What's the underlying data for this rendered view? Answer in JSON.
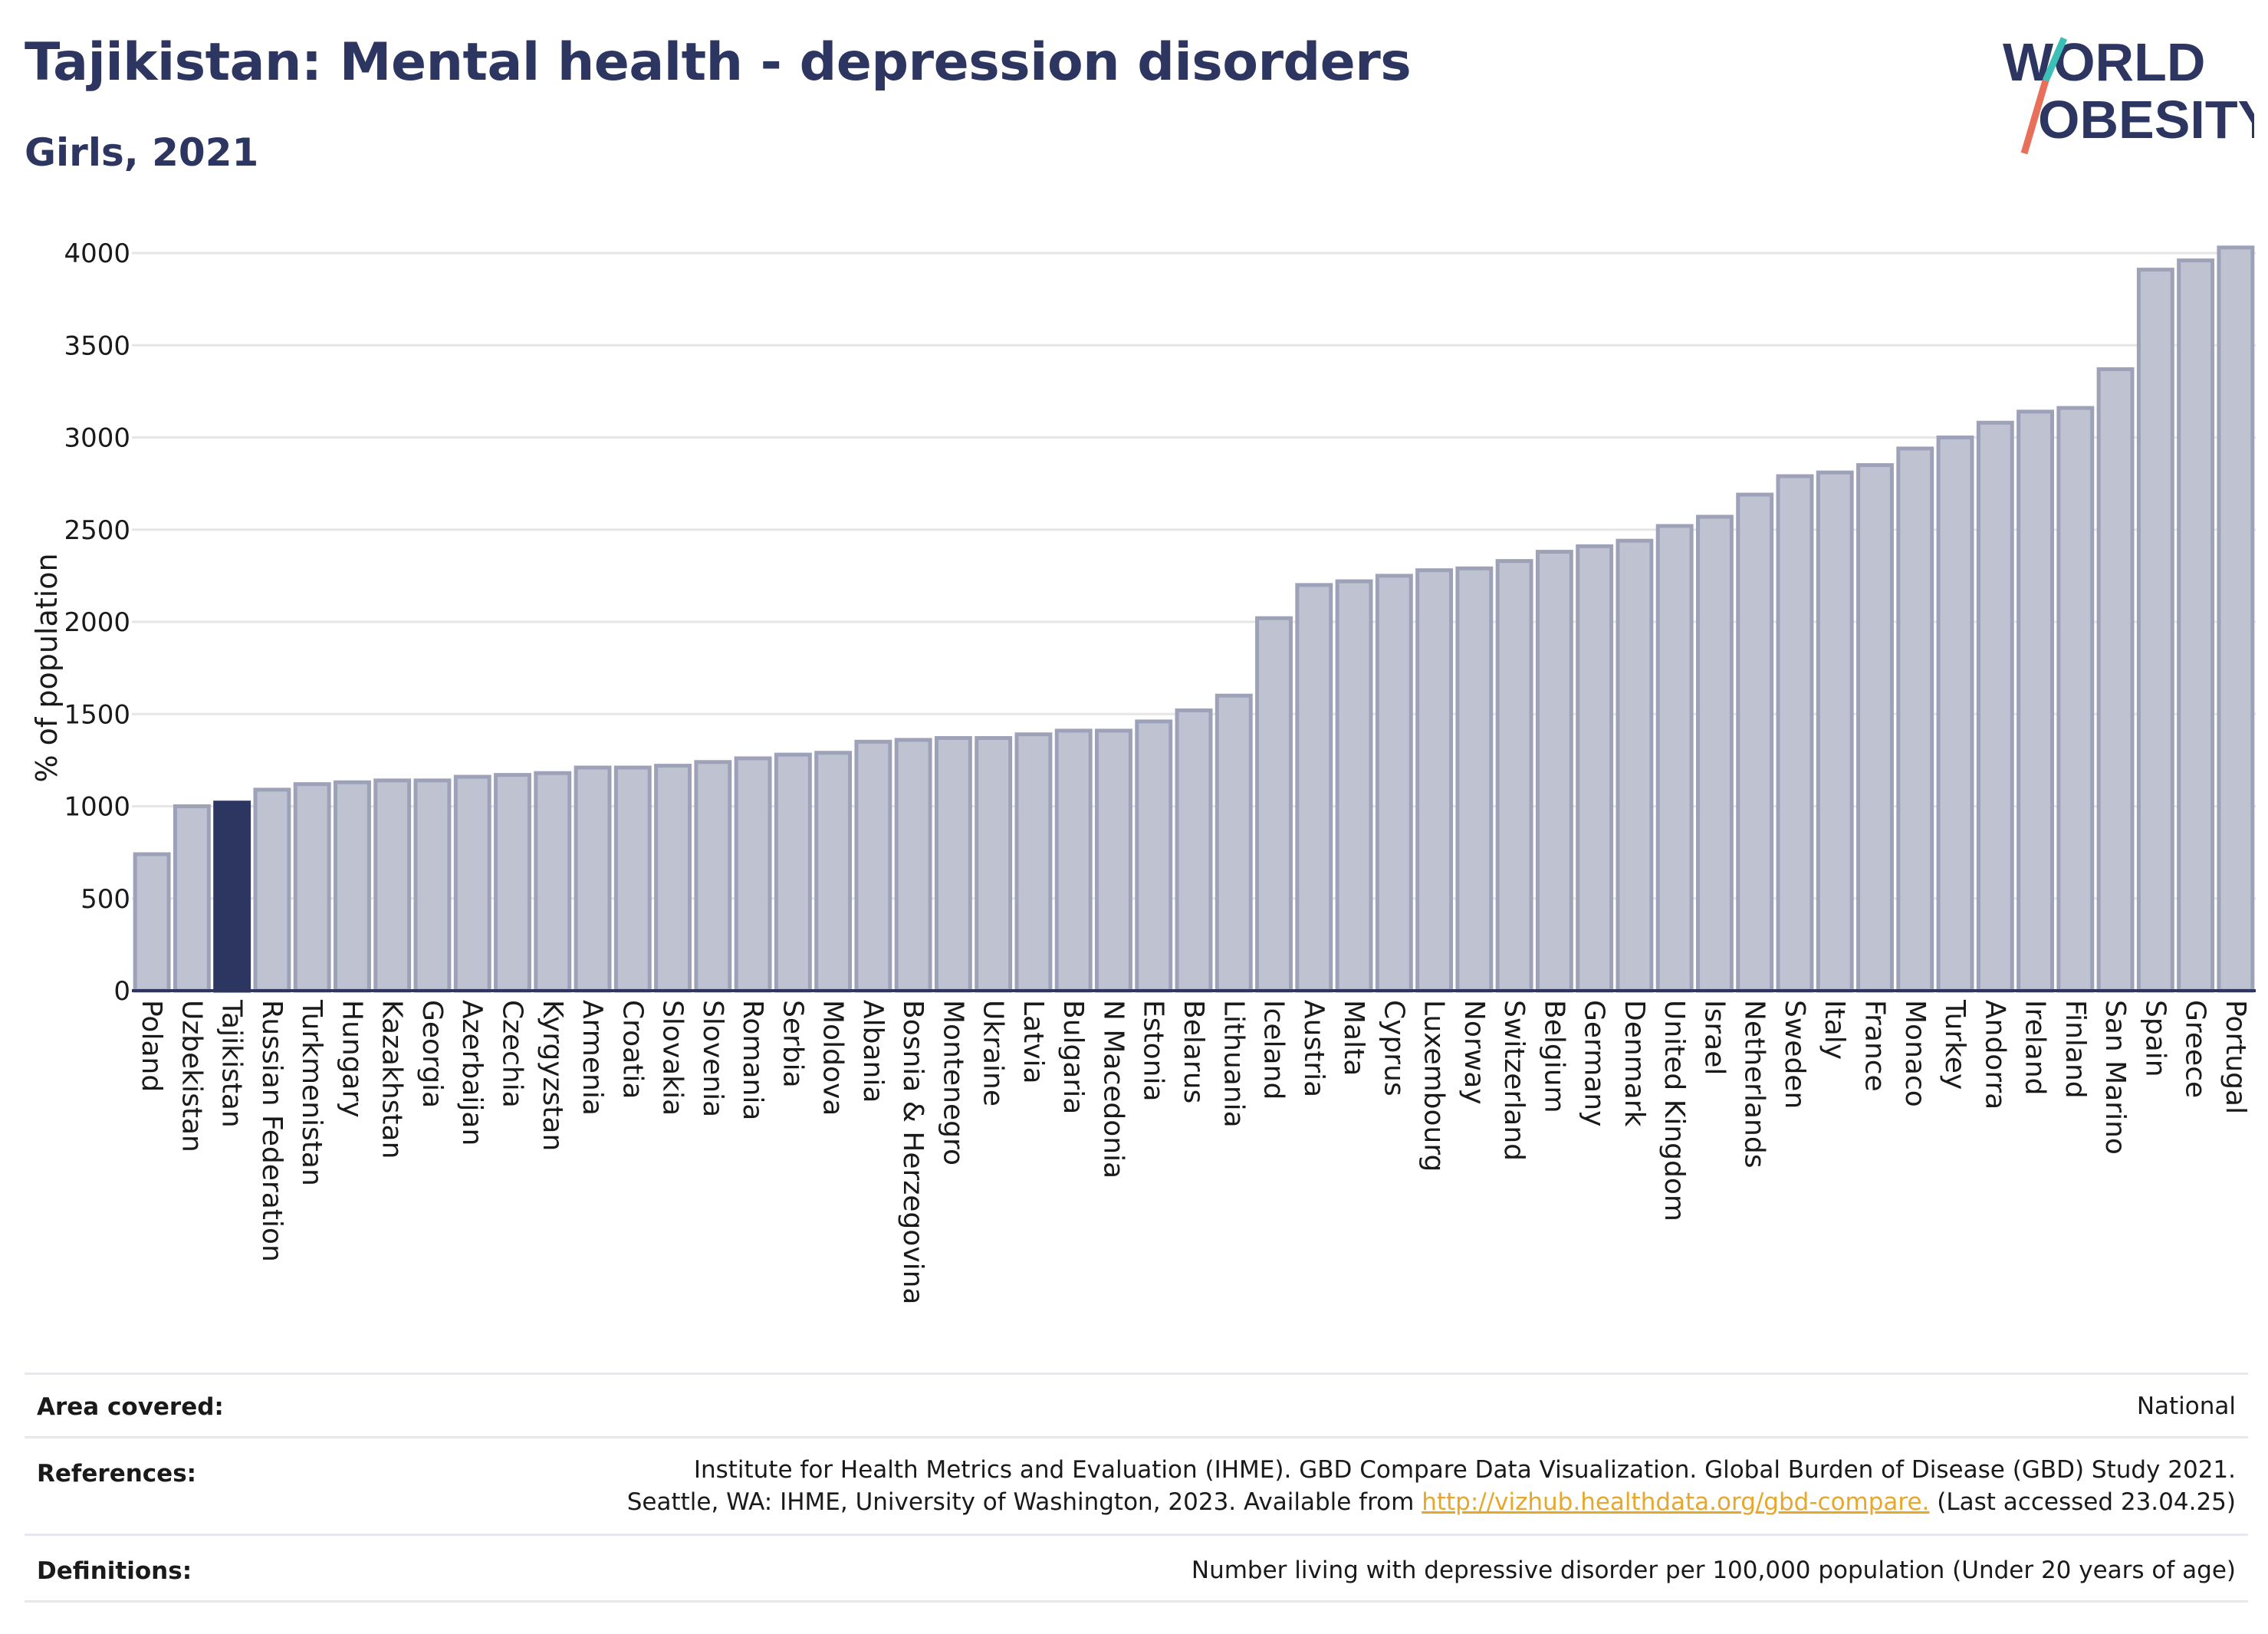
{
  "title": "Tajikistan: Mental health - depression disorders",
  "subtitle": "Girls, 2021",
  "logo": {
    "line1": "WORLD",
    "line2": "OBESITY"
  },
  "colors": {
    "bar": "#bfc2d0",
    "bar_stroke": "#9da2b8",
    "highlight": "#2d3561",
    "text": "#2d3561",
    "accent_teal": "#3bbfb6",
    "accent_coral": "#e8705a",
    "link": "#e7a72a"
  },
  "chart_data": {
    "type": "bar",
    "ylabel": "% of population",
    "ylim": [
      0,
      4000
    ],
    "yticks": [
      "0",
      "500",
      "1000",
      "1500",
      "2000",
      "2500",
      "3000",
      "3500",
      "4000"
    ],
    "highlight": "Tajikistan",
    "categories": [
      "Poland",
      "Uzbekistan",
      "Tajikistan",
      "Russian Federation",
      "Turkmenistan",
      "Hungary",
      "Kazakhstan",
      "Georgia",
      "Azerbaijan",
      "Czechia",
      "Kyrgyzstan",
      "Armenia",
      "Croatia",
      "Slovakia",
      "Slovenia",
      "Romania",
      "Serbia",
      "Moldova",
      "Albania",
      "Bosnia & Herzegovina",
      "Montenegro",
      "Ukraine",
      "Latvia",
      "Bulgaria",
      "N Macedonia",
      "Estonia",
      "Belarus",
      "Lithuania",
      "Iceland",
      "Austria",
      "Malta",
      "Cyprus",
      "Luxembourg",
      "Norway",
      "Switzerland",
      "Belgium",
      "Germany",
      "Denmark",
      "United Kingdom",
      "Israel",
      "Netherlands",
      "Sweden",
      "Italy",
      "France",
      "Monaco",
      "Turkey",
      "Andorra",
      "Ireland",
      "Finland",
      "San Marino",
      "Spain",
      "Greece",
      "Portugal"
    ],
    "values": [
      740,
      1000,
      1020,
      1090,
      1120,
      1130,
      1140,
      1140,
      1160,
      1170,
      1180,
      1210,
      1210,
      1220,
      1240,
      1260,
      1280,
      1290,
      1350,
      1360,
      1370,
      1370,
      1390,
      1410,
      1410,
      1460,
      1520,
      1600,
      2020,
      2200,
      2220,
      2250,
      2280,
      2290,
      2330,
      2380,
      2410,
      2440,
      2520,
      2570,
      2690,
      2790,
      2810,
      2850,
      2940,
      3000,
      3080,
      3140,
      3160,
      3370,
      3910,
      3960,
      4030
    ]
  },
  "footer": {
    "area_label": "Area covered:",
    "area_value": "National",
    "references_label": "References:",
    "references_line1": "Institute for Health Metrics and Evaluation (IHME). GBD Compare Data Visualization. Global Burden of Disease (GBD) Study 2021.",
    "references_line2_pre": "Seattle, WA: IHME, University of Washington, 2023. Available from",
    "references_link": "http://vizhub.healthdata.org/gbd-compare.",
    "references_line2_post": "(Last accessed 23.04.25)",
    "definitions_label": "Definitions:",
    "definitions_value": "Number living with depressive disorder per 100,000 population (Under 20 years of age)"
  }
}
